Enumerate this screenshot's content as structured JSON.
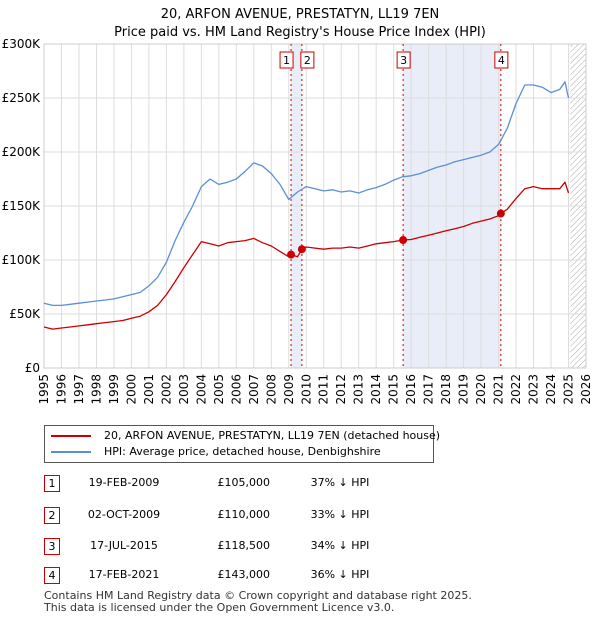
{
  "title_line1": "20, ARFON AVENUE, PRESTATYN, LL19 7EN",
  "title_line2": "Price paid vs. HM Land Registry's House Price Index (HPI)",
  "chart_data": {
    "type": "line",
    "y_ticks": [
      "£0",
      "£50K",
      "£100K",
      "£150K",
      "£200K",
      "£250K",
      "£300K"
    ],
    "y_tick_values": [
      0,
      50000,
      100000,
      150000,
      200000,
      250000,
      300000
    ],
    "ylim": [
      0,
      300000
    ],
    "x_ticks": [
      "1995",
      "1996",
      "1997",
      "1998",
      "1999",
      "2000",
      "2001",
      "2002",
      "2003",
      "2004",
      "2005",
      "2006",
      "2007",
      "2008",
      "2009",
      "2010",
      "2011",
      "2012",
      "2013",
      "2014",
      "2015",
      "2016",
      "2017",
      "2018",
      "2019",
      "2020",
      "2021",
      "2022",
      "2023",
      "2024",
      "2025",
      "2026"
    ],
    "xlim": [
      1995,
      2026
    ],
    "grid": true,
    "forecast_start": 2025.1,
    "series": [
      {
        "name": "20, ARFON AVENUE, PRESTATYN, LL19 7EN (detached house)",
        "color": "#cc0000",
        "x": [
          1995.0,
          1995.5,
          1996.0,
          1996.5,
          1997.0,
          1997.5,
          1998.0,
          1998.5,
          1999.0,
          1999.5,
          2000.0,
          2000.5,
          2001.0,
          2001.5,
          2002.0,
          2002.5,
          2003.0,
          2003.5,
          2004.0,
          2004.5,
          2005.0,
          2005.5,
          2006.0,
          2006.5,
          2007.0,
          2007.5,
          2008.0,
          2008.5,
          2009.0,
          2009.13,
          2009.5,
          2009.75,
          2010.0,
          2010.5,
          2011.0,
          2011.5,
          2012.0,
          2012.5,
          2013.0,
          2013.5,
          2014.0,
          2014.5,
          2015.0,
          2015.54,
          2016.0,
          2016.5,
          2017.0,
          2017.5,
          2018.0,
          2018.5,
          2019.0,
          2019.5,
          2020.0,
          2020.5,
          2021.0,
          2021.13,
          2021.5,
          2022.0,
          2022.5,
          2023.0,
          2023.5,
          2024.0,
          2024.5,
          2024.8,
          2025.0
        ],
        "values": [
          38000,
          36000,
          37000,
          38000,
          39000,
          40000,
          41000,
          42000,
          43000,
          44000,
          46000,
          48000,
          52000,
          58000,
          68000,
          80000,
          93000,
          105000,
          117000,
          115000,
          113000,
          116000,
          117000,
          118000,
          120000,
          116000,
          113000,
          108000,
          103000,
          105000,
          103000,
          110000,
          112000,
          111000,
          110000,
          111000,
          111000,
          112000,
          111000,
          113000,
          115000,
          116000,
          117000,
          118500,
          119000,
          121000,
          123000,
          125000,
          127000,
          129000,
          131000,
          134000,
          136000,
          138000,
          141000,
          143000,
          147000,
          157000,
          166000,
          168000,
          166000,
          166000,
          166000,
          172000,
          162000
        ]
      },
      {
        "name": "HPI: Average price, detached house, Denbighshire",
        "color": "#5b8fd4",
        "x": [
          1995.0,
          1995.5,
          1996.0,
          1996.5,
          1997.0,
          1997.5,
          1998.0,
          1998.5,
          1999.0,
          1999.5,
          2000.0,
          2000.5,
          2001.0,
          2001.5,
          2002.0,
          2002.5,
          2003.0,
          2003.5,
          2004.0,
          2004.5,
          2005.0,
          2005.5,
          2006.0,
          2006.5,
          2007.0,
          2007.5,
          2008.0,
          2008.5,
          2009.0,
          2009.5,
          2010.0,
          2010.5,
          2011.0,
          2011.5,
          2012.0,
          2012.5,
          2013.0,
          2013.5,
          2014.0,
          2014.5,
          2015.0,
          2015.5,
          2016.0,
          2016.5,
          2017.0,
          2017.5,
          2018.0,
          2018.5,
          2019.0,
          2019.5,
          2020.0,
          2020.5,
          2021.0,
          2021.5,
          2022.0,
          2022.5,
          2023.0,
          2023.5,
          2024.0,
          2024.5,
          2024.8,
          2025.0
        ],
        "values": [
          60000,
          58000,
          58000,
          59000,
          60000,
          61000,
          62000,
          63000,
          64000,
          66000,
          68000,
          70000,
          76000,
          84000,
          98000,
          118000,
          135000,
          150000,
          168000,
          175000,
          170000,
          172000,
          175000,
          182000,
          190000,
          187000,
          180000,
          170000,
          156000,
          163000,
          168000,
          166000,
          164000,
          165000,
          163000,
          164000,
          162000,
          165000,
          167000,
          170000,
          174000,
          177000,
          178000,
          180000,
          183000,
          186000,
          188000,
          191000,
          193000,
          195000,
          197000,
          200000,
          207000,
          222000,
          245000,
          262000,
          262000,
          260000,
          255000,
          258000,
          265000,
          250000
        ]
      }
    ],
    "markers": [
      {
        "label": "1",
        "x": 2009.13,
        "value": 105000
      },
      {
        "label": "2",
        "x": 2009.75,
        "value": 110000
      },
      {
        "label": "3",
        "x": 2015.54,
        "value": 118500
      },
      {
        "label": "4",
        "x": 2021.13,
        "value": 143000
      }
    ]
  },
  "legend": {
    "property_label": "20, ARFON AVENUE, PRESTATYN, LL19 7EN (detached house)",
    "hpi_label": "HPI: Average price, detached house, Denbighshire"
  },
  "transactions": [
    {
      "num": "1",
      "date": "19-FEB-2009",
      "price": "£105,000",
      "hpi": "37% ↓ HPI"
    },
    {
      "num": "2",
      "date": "02-OCT-2009",
      "price": "£110,000",
      "hpi": "33% ↓ HPI"
    },
    {
      "num": "3",
      "date": "17-JUL-2015",
      "price": "£118,500",
      "hpi": "34% ↓ HPI"
    },
    {
      "num": "4",
      "date": "17-FEB-2021",
      "price": "£143,000",
      "hpi": "36% ↓ HPI"
    }
  ],
  "footer_line1": "Contains HM Land Registry data © Crown copyright and database right 2025.",
  "footer_line2": "This data is licensed under the Open Government Licence v3.0.",
  "colors": {
    "property": "#cc0000",
    "hpi": "#5b8fd4",
    "grid": "#dddddd",
    "marker_line": "#cc0000",
    "shade": "#e8edf7"
  }
}
